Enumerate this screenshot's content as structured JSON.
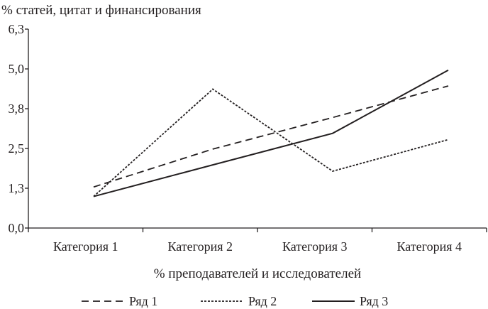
{
  "chart_data": {
    "type": "line",
    "ylabel": "% статей, цитат и финансирования",
    "xlabel": "% преподавателей и исследователей",
    "categories": [
      "Категория 1",
      "Категория 2",
      "Категория 3",
      "Категория 4"
    ],
    "yticks": [
      "0,0",
      "1,3",
      "2,5",
      "3,8",
      "5,0",
      "6,3"
    ],
    "ylim": [
      0,
      6.3
    ],
    "grid": false,
    "legend": "bottom",
    "series": [
      {
        "name": "Ряд 1",
        "style": "dashed",
        "values": [
          1.3,
          2.5,
          3.5,
          4.5
        ]
      },
      {
        "name": "Ряд 2",
        "style": "dotted",
        "values": [
          1.0,
          4.4,
          1.8,
          2.8
        ]
      },
      {
        "name": "Ряд 3",
        "style": "solid",
        "values": [
          1.0,
          2.0,
          3.0,
          5.0
        ]
      }
    ],
    "color": "#231f20"
  }
}
